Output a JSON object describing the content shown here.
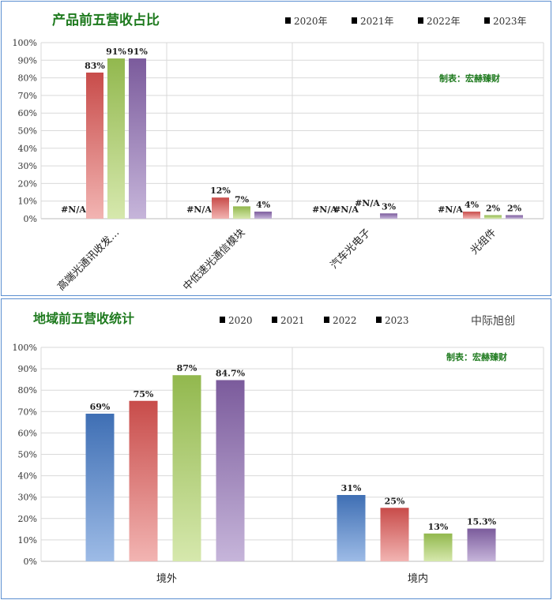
{
  "colors": {
    "s2020": [
      "#3f6fb4",
      "#9dbbe6"
    ],
    "s2021": [
      "#c84c4a",
      "#f2b4b2"
    ],
    "s2022": [
      "#92b84e",
      "#d6e8ad"
    ],
    "s2023": [
      "#7b5b9c",
      "#c6b5da"
    ],
    "title": "#1e7a1e"
  },
  "chart_data": [
    {
      "type": "bar",
      "title": "产品前五营收占比",
      "note": "制表：宏赫臻财",
      "categories": [
        "高端光通讯收发…",
        "中低速光通信模块",
        "汽车光电子",
        "光组件"
      ],
      "yticks": [
        "0%",
        "10%",
        "20%",
        "30%",
        "40%",
        "50%",
        "60%",
        "70%",
        "80%",
        "90%",
        "100%"
      ],
      "ylim": [
        0,
        100
      ],
      "grid": true,
      "legend_position": "top-right",
      "series": [
        {
          "name": "2020年",
          "values": [
            null,
            null,
            null,
            null
          ],
          "labels": [
            "#N/A",
            "#N/A",
            "#N/A",
            "#N/A"
          ]
        },
        {
          "name": "2021年",
          "values": [
            83,
            12,
            null,
            4
          ],
          "labels": [
            "83%",
            "12%",
            "#N/A",
            "4%"
          ]
        },
        {
          "name": "2022年",
          "values": [
            91,
            7,
            null,
            2
          ],
          "labels": [
            "91%",
            "7%",
            "#N/A",
            "2%"
          ]
        },
        {
          "name": "2023年",
          "values": [
            91,
            4,
            3,
            2
          ],
          "labels": [
            "91%",
            "4%",
            "3%",
            "2%"
          ]
        }
      ]
    },
    {
      "type": "bar",
      "title": "地域前五营收统计",
      "brand": "中际旭创",
      "note": "制表：宏赫臻财",
      "categories": [
        "境外",
        "境内"
      ],
      "yticks": [
        "0%",
        "10%",
        "20%",
        "30%",
        "40%",
        "50%",
        "60%",
        "70%",
        "80%",
        "90%",
        "100%"
      ],
      "ylim": [
        0,
        100
      ],
      "grid": true,
      "legend_position": "top-center",
      "series": [
        {
          "name": "2020",
          "values": [
            69,
            31
          ],
          "labels": [
            "69%",
            "31%"
          ]
        },
        {
          "name": "2021",
          "values": [
            75,
            25
          ],
          "labels": [
            "75%",
            "25%"
          ]
        },
        {
          "name": "2022",
          "values": [
            87,
            13
          ],
          "labels": [
            "87%",
            "13%"
          ]
        },
        {
          "name": "2023",
          "values": [
            84.7,
            15.3
          ],
          "labels": [
            "84.7%",
            "15.3%"
          ]
        }
      ]
    }
  ]
}
